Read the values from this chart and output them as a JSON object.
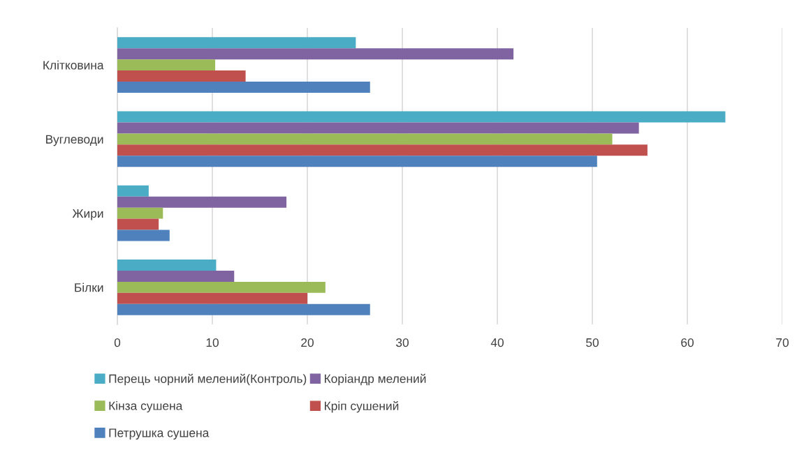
{
  "chart_data": {
    "type": "bar",
    "orientation": "horizontal",
    "categories": [
      "Клітковина",
      "Вуглеводи",
      "Жири",
      "Білки"
    ],
    "series": [
      {
        "name": "Перець чорний мелений(Контроль)",
        "color": "#4bacc6",
        "values": [
          25.1,
          64.0,
          3.3,
          10.4
        ]
      },
      {
        "name": "Коріандр мелений",
        "color": "#8064a2",
        "values": [
          41.7,
          54.9,
          17.8,
          12.3
        ]
      },
      {
        "name": "Кінза сушена",
        "color": "#9bbb59",
        "values": [
          10.3,
          52.1,
          4.8,
          21.9
        ]
      },
      {
        "name": "Кріп сушений",
        "color": "#c0504d",
        "values": [
          13.5,
          55.8,
          4.35,
          20.0
        ]
      },
      {
        "name": "Петрушка сушена",
        "color": "#4f81bd",
        "values": [
          26.6,
          50.5,
          5.5,
          26.6
        ]
      }
    ],
    "xlim": [
      0,
      70
    ],
    "xticks": [
      0,
      10,
      20,
      30,
      40,
      50,
      60,
      70
    ],
    "grid": "x",
    "legend": "bottom"
  }
}
